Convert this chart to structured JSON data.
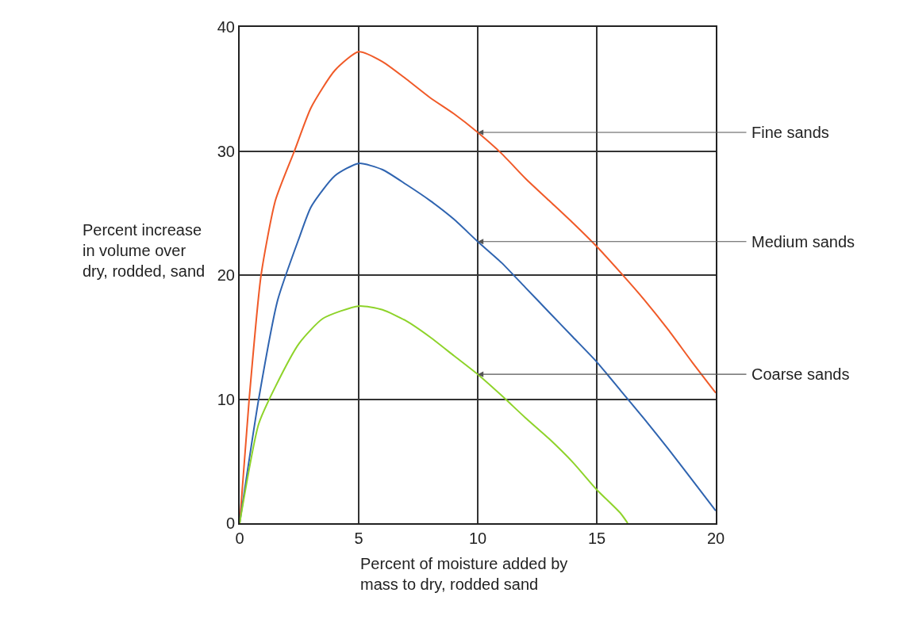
{
  "chart_data": {
    "type": "line",
    "xlabel": "Percent of moisture added by\nmass to dry, rodded sand",
    "ylabel": "Percent increase\nin volume over\ndry, rodded, sand",
    "xlim": [
      0,
      20
    ],
    "xticks": [
      0,
      5,
      10,
      15,
      20
    ],
    "ylim": [
      0,
      40
    ],
    "yticks": [
      0,
      10,
      20,
      30,
      40
    ],
    "grid": true,
    "marker": "none",
    "line_style": "solid",
    "series": [
      {
        "name": "Fine sands",
        "color": "#f05a28",
        "x": [
          0,
          0.4,
          0.9,
          1.5,
          2.3,
          3,
          4,
          5,
          6,
          7,
          8,
          9,
          10,
          11,
          12,
          13,
          14,
          15,
          16,
          17,
          18,
          19,
          20
        ],
        "values": [
          0,
          10,
          20,
          26,
          30,
          33.5,
          36.5,
          38,
          37.2,
          35.8,
          34.3,
          33,
          31.5,
          29.8,
          27.8,
          26,
          24.2,
          22.3,
          20.2,
          18,
          15.6,
          13,
          10.5
        ]
      },
      {
        "name": "Medium sands",
        "color": "#2f64b0",
        "x": [
          0,
          0.8,
          1.6,
          2.5,
          3,
          4,
          5,
          6,
          7,
          8,
          9,
          10,
          11,
          12,
          13,
          14,
          15,
          16,
          17,
          18,
          19,
          20
        ],
        "values": [
          0,
          10,
          18,
          23,
          25.5,
          28,
          29,
          28.5,
          27.3,
          26,
          24.5,
          22.7,
          21,
          19,
          17,
          15,
          13,
          10.7,
          8.4,
          6,
          3.5,
          1
        ]
      },
      {
        "name": "Coarse sands",
        "color": "#8ed32a",
        "x": [
          0,
          0.8,
          1.5,
          2.5,
          3.5,
          5,
          6,
          7,
          8,
          9,
          10,
          11,
          12,
          13,
          14,
          15,
          16,
          16.3
        ],
        "values": [
          0,
          8,
          11,
          14.5,
          16.5,
          17.5,
          17.2,
          16.3,
          15,
          13.5,
          12,
          10.3,
          8.5,
          6.8,
          4.9,
          2.7,
          0.8,
          0
        ]
      }
    ]
  }
}
